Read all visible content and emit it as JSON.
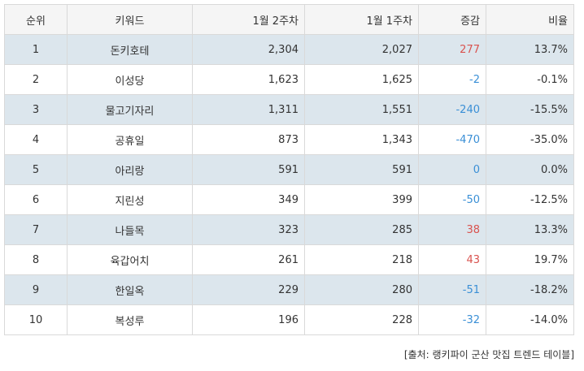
{
  "headers": {
    "rank": "순위",
    "keyword": "키워드",
    "week2": "1월 2주차",
    "week1": "1월 1주차",
    "change": "증감",
    "ratio": "비율"
  },
  "rows": [
    {
      "rank": "1",
      "keyword": "돈키호테",
      "week2": "2,304",
      "week1": "2,027",
      "change": "277",
      "ratio": "13.7%",
      "dir": "pos"
    },
    {
      "rank": "2",
      "keyword": "이성당",
      "week2": "1,623",
      "week1": "1,625",
      "change": "-2",
      "ratio": "-0.1%",
      "dir": "neg"
    },
    {
      "rank": "3",
      "keyword": "물고기자리",
      "week2": "1,311",
      "week1": "1,551",
      "change": "-240",
      "ratio": "-15.5%",
      "dir": "neg"
    },
    {
      "rank": "4",
      "keyword": "공휴일",
      "week2": "873",
      "week1": "1,343",
      "change": "-470",
      "ratio": "-35.0%",
      "dir": "neg"
    },
    {
      "rank": "5",
      "keyword": "아리랑",
      "week2": "591",
      "week1": "591",
      "change": "0",
      "ratio": "0.0%",
      "dir": "zero"
    },
    {
      "rank": "6",
      "keyword": "지린성",
      "week2": "349",
      "week1": "399",
      "change": "-50",
      "ratio": "-12.5%",
      "dir": "neg"
    },
    {
      "rank": "7",
      "keyword": "나들목",
      "week2": "323",
      "week1": "285",
      "change": "38",
      "ratio": "13.3%",
      "dir": "pos"
    },
    {
      "rank": "8",
      "keyword": "육갑어치",
      "week2": "261",
      "week1": "218",
      "change": "43",
      "ratio": "19.7%",
      "dir": "pos"
    },
    {
      "rank": "9",
      "keyword": "한일옥",
      "week2": "229",
      "week1": "280",
      "change": "-51",
      "ratio": "-18.2%",
      "dir": "neg"
    },
    {
      "rank": "10",
      "keyword": "복성루",
      "week2": "196",
      "week1": "228",
      "change": "-32",
      "ratio": "-14.0%",
      "dir": "neg"
    }
  ],
  "colors": {
    "header_bg": "#f5f5f5",
    "shaded_row_bg": "#dce6ed",
    "border": "#d9d9d9",
    "increase": "#d9534f",
    "decrease": "#3a8fd6"
  },
  "source": "[출처: 랭키파이 군산 맛집 트렌드 테이블]"
}
